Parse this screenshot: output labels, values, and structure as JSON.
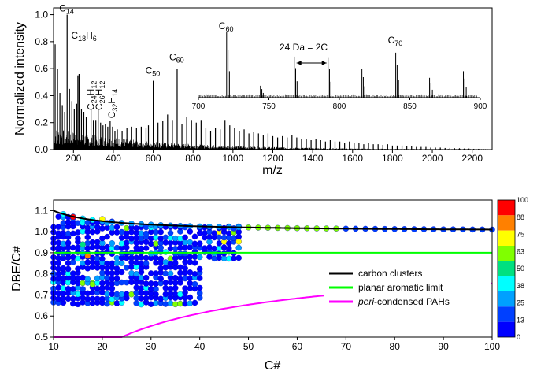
{
  "chart_data": [
    {
      "type": "line",
      "xlabel": "m/z",
      "ylabel": "Normalized intensity",
      "xlim": [
        100,
        2300
      ],
      "ylim": [
        0,
        1.05
      ],
      "x_ticks": [
        200,
        400,
        600,
        800,
        1000,
        1200,
        1400,
        1600,
        1800,
        2000,
        2200
      ],
      "y_ticks": [
        0.0,
        0.2,
        0.4,
        0.6,
        0.8,
        1.0
      ],
      "x_tick_labels": [
        "200",
        "400",
        "600",
        "800",
        "1000",
        "1200",
        "1400",
        "1600",
        "1800",
        "2000",
        "2200"
      ],
      "y_tick_labels": [
        "0.0",
        "0.2",
        "0.4",
        "0.6",
        "0.8",
        "1.0"
      ],
      "peaks": [
        {
          "x": 108,
          "y": 0.78
        },
        {
          "x": 120,
          "y": 0.6
        },
        {
          "x": 132,
          "y": 0.42
        },
        {
          "x": 144,
          "y": 0.33
        },
        {
          "x": 156,
          "y": 0.28
        },
        {
          "x": 168,
          "y": 1.0
        },
        {
          "x": 180,
          "y": 0.45
        },
        {
          "x": 192,
          "y": 0.36
        },
        {
          "x": 204,
          "y": 0.3
        },
        {
          "x": 216,
          "y": 0.34
        },
        {
          "x": 222,
          "y": 0.55
        },
        {
          "x": 228,
          "y": 0.56
        },
        {
          "x": 240,
          "y": 0.3
        },
        {
          "x": 252,
          "y": 0.28
        },
        {
          "x": 264,
          "y": 0.24
        },
        {
          "x": 288,
          "y": 0.3
        },
        {
          "x": 300,
          "y": 0.22
        },
        {
          "x": 312,
          "y": 0.22
        },
        {
          "x": 324,
          "y": 0.3
        },
        {
          "x": 336,
          "y": 0.2
        },
        {
          "x": 348,
          "y": 0.18
        },
        {
          "x": 360,
          "y": 0.19
        },
        {
          "x": 372,
          "y": 0.17
        },
        {
          "x": 384,
          "y": 0.21
        },
        {
          "x": 396,
          "y": 0.17
        },
        {
          "x": 408,
          "y": 0.14
        },
        {
          "x": 420,
          "y": 0.15
        },
        {
          "x": 444,
          "y": 0.14
        },
        {
          "x": 468,
          "y": 0.16
        },
        {
          "x": 492,
          "y": 0.17
        },
        {
          "x": 516,
          "y": 0.16
        },
        {
          "x": 540,
          "y": 0.17
        },
        {
          "x": 564,
          "y": 0.16
        },
        {
          "x": 576,
          "y": 0.18
        },
        {
          "x": 600,
          "y": 0.51
        },
        {
          "x": 624,
          "y": 0.2
        },
        {
          "x": 648,
          "y": 0.21
        },
        {
          "x": 672,
          "y": 0.26
        },
        {
          "x": 696,
          "y": 0.22
        },
        {
          "x": 720,
          "y": 0.6
        },
        {
          "x": 744,
          "y": 0.19
        },
        {
          "x": 768,
          "y": 0.24
        },
        {
          "x": 792,
          "y": 0.22
        },
        {
          "x": 816,
          "y": 0.2
        },
        {
          "x": 840,
          "y": 0.22
        },
        {
          "x": 864,
          "y": 0.16
        },
        {
          "x": 888,
          "y": 0.14
        },
        {
          "x": 912,
          "y": 0.16
        },
        {
          "x": 936,
          "y": 0.15
        },
        {
          "x": 960,
          "y": 0.22
        },
        {
          "x": 984,
          "y": 0.18
        },
        {
          "x": 1008,
          "y": 0.16
        },
        {
          "x": 1032,
          "y": 0.14
        },
        {
          "x": 1056,
          "y": 0.15
        },
        {
          "x": 1080,
          "y": 0.12
        },
        {
          "x": 1104,
          "y": 0.13
        },
        {
          "x": 1128,
          "y": 0.12
        },
        {
          "x": 1152,
          "y": 0.11
        },
        {
          "x": 1176,
          "y": 0.12
        },
        {
          "x": 1200,
          "y": 0.1
        },
        {
          "x": 1224,
          "y": 0.09
        },
        {
          "x": 1248,
          "y": 0.1
        },
        {
          "x": 1272,
          "y": 0.09
        },
        {
          "x": 1296,
          "y": 0.11
        },
        {
          "x": 1320,
          "y": 0.09
        },
        {
          "x": 1344,
          "y": 0.08
        },
        {
          "x": 1368,
          "y": 0.08
        },
        {
          "x": 1392,
          "y": 0.07
        },
        {
          "x": 1416,
          "y": 0.08
        },
        {
          "x": 1440,
          "y": 0.07
        },
        {
          "x": 1464,
          "y": 0.06
        },
        {
          "x": 1488,
          "y": 0.07
        },
        {
          "x": 1512,
          "y": 0.06
        },
        {
          "x": 1536,
          "y": 0.06
        },
        {
          "x": 1560,
          "y": 0.05
        },
        {
          "x": 1584,
          "y": 0.06
        },
        {
          "x": 1608,
          "y": 0.05
        },
        {
          "x": 1632,
          "y": 0.05
        },
        {
          "x": 1656,
          "y": 0.04
        },
        {
          "x": 1680,
          "y": 0.05
        },
        {
          "x": 1704,
          "y": 0.04
        },
        {
          "x": 1728,
          "y": 0.04
        },
        {
          "x": 1752,
          "y": 0.035
        },
        {
          "x": 1776,
          "y": 0.04
        },
        {
          "x": 1800,
          "y": 0.03
        },
        {
          "x": 1824,
          "y": 0.03
        },
        {
          "x": 1848,
          "y": 0.03
        },
        {
          "x": 1872,
          "y": 0.025
        },
        {
          "x": 1896,
          "y": 0.025
        },
        {
          "x": 1920,
          "y": 0.02
        },
        {
          "x": 1944,
          "y": 0.02
        },
        {
          "x": 1968,
          "y": 0.02
        },
        {
          "x": 1992,
          "y": 0.015
        },
        {
          "x": 2016,
          "y": 0.015
        },
        {
          "x": 2040,
          "y": 0.015
        },
        {
          "x": 2064,
          "y": 0.012
        },
        {
          "x": 2088,
          "y": 0.012
        },
        {
          "x": 2112,
          "y": 0.01
        },
        {
          "x": 2136,
          "y": 0.01
        },
        {
          "x": 2160,
          "y": 0.008
        },
        {
          "x": 2184,
          "y": 0.008
        },
        {
          "x": 2208,
          "y": 0.006
        },
        {
          "x": 2232,
          "y": 0.006
        },
        {
          "x": 2256,
          "y": 0.005
        }
      ],
      "annotations": [
        {
          "base": "C",
          "sub": "14",
          "x": 168,
          "y": 1.0
        },
        {
          "base": "C",
          "sub": "18",
          "base2": "H",
          "sub2": "6",
          "x": 228,
          "y": 0.8
        },
        {
          "base": "C",
          "sub": "24",
          "base2": "H",
          "sub2": "12",
          "x": 288,
          "y": 0.28,
          "rotated": true
        },
        {
          "base": "C",
          "sub": "26",
          "base2": "H",
          "sub2": "12",
          "x": 330,
          "y": 0.28,
          "rotated": true
        },
        {
          "base": "C",
          "sub": "32",
          "base2": "H",
          "sub2": "14",
          "x": 392,
          "y": 0.22,
          "rotated": true
        },
        {
          "base": "C",
          "sub": "50",
          "x": 600,
          "y": 0.54
        },
        {
          "base": "C",
          "sub": "60",
          "x": 720,
          "y": 0.64
        }
      ],
      "inset": {
        "xlim": [
          700,
          900
        ],
        "x_ticks": [
          700,
          750,
          800,
          850,
          900
        ],
        "x_tick_labels": [
          "700",
          "750",
          "800",
          "850",
          "900"
        ],
        "peaks": [
          {
            "x": 720,
            "y": 1.0
          },
          {
            "x": 744,
            "y": 0.18
          },
          {
            "x": 768,
            "y": 0.62
          },
          {
            "x": 792,
            "y": 0.6
          },
          {
            "x": 816,
            "y": 0.43
          },
          {
            "x": 840,
            "y": 0.68
          },
          {
            "x": 864,
            "y": 0.3
          },
          {
            "x": 888,
            "y": 0.4
          }
        ],
        "annotations": [
          {
            "base": "C",
            "sub": "60",
            "x": 720
          },
          {
            "base": "C",
            "sub": "70",
            "x": 840
          }
        ],
        "arrow_label": "24 Da = 2C",
        "arrow_x": [
          768,
          792
        ]
      }
    },
    {
      "type": "scatter",
      "xlabel": "C#",
      "ylabel": "DBE/C#",
      "xlim": [
        10,
        100
      ],
      "ylim": [
        0.5,
        1.15
      ],
      "x_ticks": [
        10,
        20,
        30,
        40,
        50,
        60,
        70,
        80,
        90,
        100
      ],
      "y_ticks": [
        0.5,
        0.6,
        0.7,
        0.8,
        0.9,
        1.0,
        1.1
      ],
      "x_tick_labels": [
        "10",
        "20",
        "30",
        "40",
        "50",
        "60",
        "70",
        "80",
        "90",
        "100"
      ],
      "y_tick_labels": [
        "0.5",
        "0.6",
        "0.7",
        "0.8",
        "0.9",
        "1.0",
        "1.1"
      ],
      "series": [
        {
          "name": "carbon clusters",
          "color": "#000000",
          "curve": "1 + 1/C#"
        },
        {
          "name": "planar aromatic limit",
          "color": "#00ff00",
          "value": 0.9
        },
        {
          "name_parts": [
            {
              "text": "peri",
              "italic": true
            },
            {
              "text": "-condensed PAHs",
              "italic": false
            }
          ],
          "color": "#ff00ff",
          "curve": "1 - 1/sqrt(C#/6)"
        }
      ],
      "points_description": "dense cluster of blue circles between C# 10 and 48, DBE/C# 0.66-1.08; carbon cluster points along the black curve from C# 10 to 100",
      "colorbar": {
        "labels": [
          "100",
          "88",
          "75",
          "63",
          "50",
          "38",
          "25",
          "13",
          "0"
        ],
        "colors": [
          "#ff0000",
          "#ff8000",
          "#ffff00",
          "#80ff00",
          "#00e080",
          "#00ffff",
          "#00a0ff",
          "#0040ff",
          "#0000ff"
        ]
      }
    }
  ]
}
